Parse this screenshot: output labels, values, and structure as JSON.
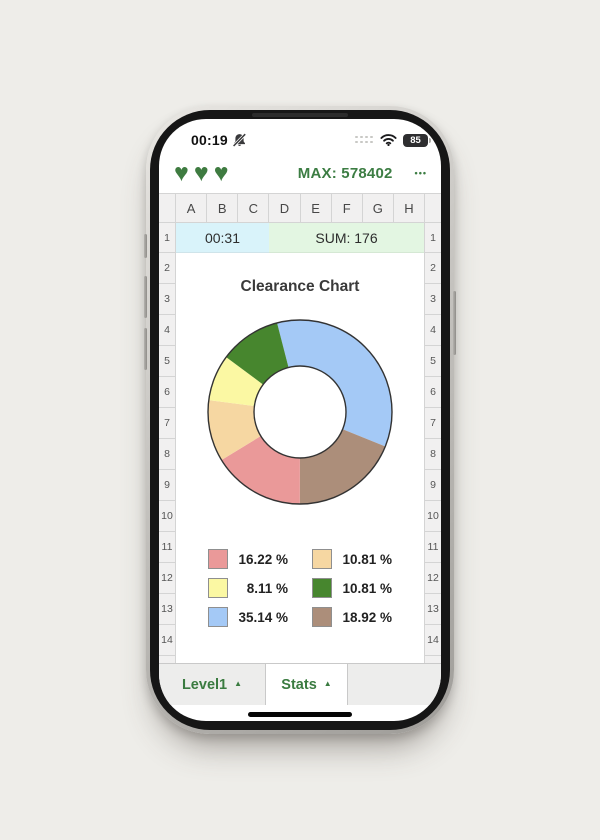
{
  "status_bar": {
    "time": "00:19",
    "battery_level": "85"
  },
  "app_header": {
    "lives": [
      "♥",
      "♥",
      "♥"
    ],
    "max_label": "MAX: 578402",
    "menu_label": "•••"
  },
  "grid": {
    "columns": [
      "A",
      "B",
      "C",
      "D",
      "E",
      "F",
      "G",
      "H"
    ],
    "row1": {
      "left_number": "1",
      "right_number": "1",
      "time_cell": "00:31",
      "sum_cell": "SUM: 176"
    },
    "row_numbers": [
      "2",
      "3",
      "4",
      "5",
      "6",
      "7",
      "8",
      "9",
      "10",
      "11",
      "12",
      "13",
      "14"
    ]
  },
  "chart_data": {
    "type": "pie",
    "subtype": "donut",
    "title": "Clearance Chart",
    "start_angle_deg": -14.5,
    "inner_radius_ratio": 0.5,
    "outline_color": "#333333",
    "segments_clockwise": [
      {
        "name": "blue",
        "value": 35.14,
        "color": "#a4c9f6"
      },
      {
        "name": "brown",
        "value": 18.92,
        "color": "#ac8e7a"
      },
      {
        "name": "pink",
        "value": 16.22,
        "color": "#ea9999"
      },
      {
        "name": "tan",
        "value": 10.81,
        "color": "#f6d7a2"
      },
      {
        "name": "yellow",
        "value": 8.11,
        "color": "#fbf8a3"
      },
      {
        "name": "green",
        "value": 10.81,
        "color": "#47862e"
      }
    ],
    "legend_position": "below, 2 columns",
    "legend": [
      {
        "label": "16.22 %",
        "color": "#ea9999"
      },
      {
        "label": "10.81 %",
        "color": "#f6d7a2"
      },
      {
        "label": "8.11 %",
        "color": "#fbf8a3"
      },
      {
        "label": "10.81 %",
        "color": "#47862e"
      },
      {
        "label": "35.14 %",
        "color": "#a4c9f6"
      },
      {
        "label": "18.92 %",
        "color": "#ac8e7a"
      }
    ]
  },
  "tabs": [
    {
      "label": "Level1",
      "arrow": "▲",
      "active": false
    },
    {
      "label": "Stats",
      "arrow": "▲",
      "active": true
    }
  ],
  "colors": {
    "accent_green": "#3d7c42",
    "time_cell_bg": "#d9f3fa",
    "sum_cell_bg": "#e3f6e2",
    "grid_chrome_bg": "#f1f0f0",
    "grid_border": "#d4d4d4"
  }
}
